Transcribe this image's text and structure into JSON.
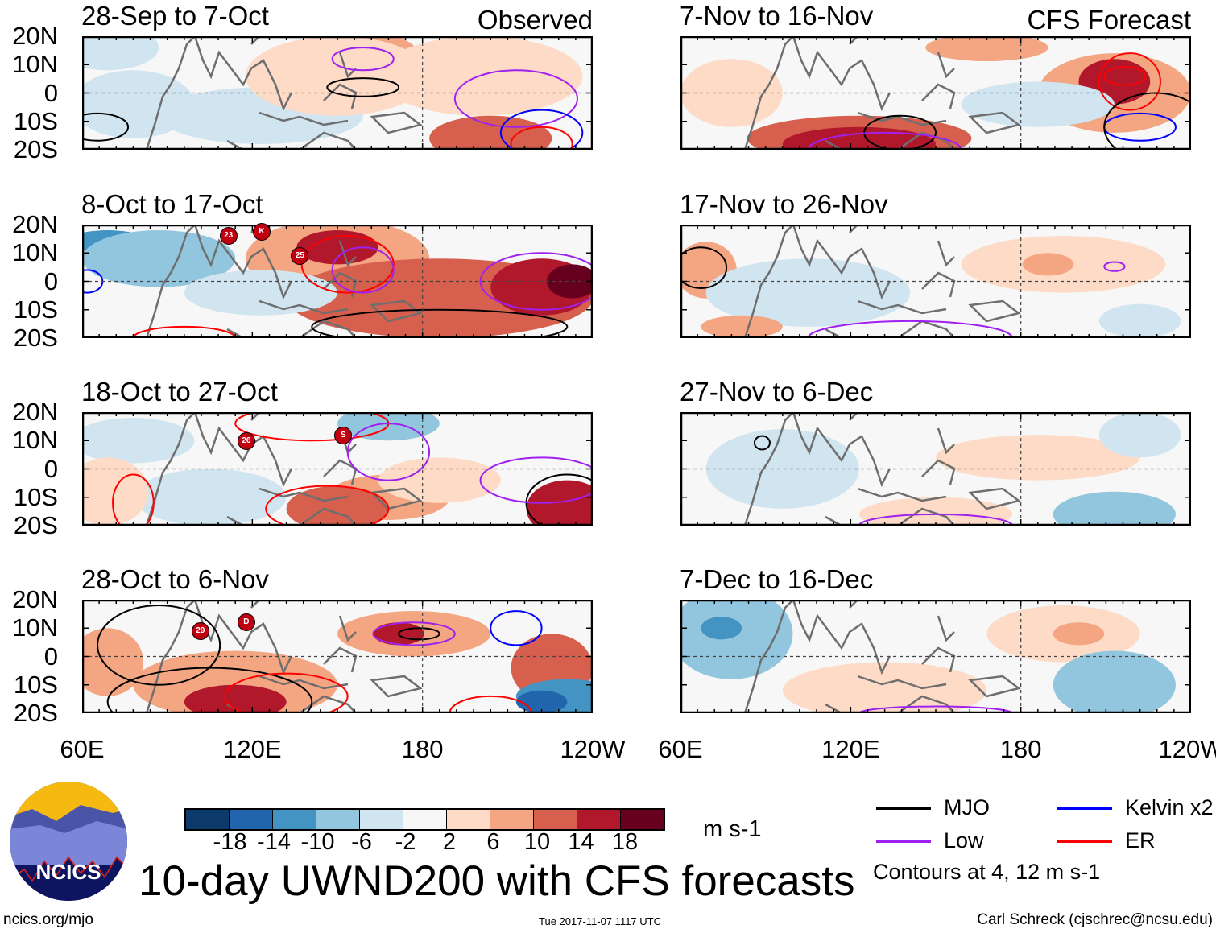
{
  "panels": [
    {
      "title": "28-Sep to 7-Oct",
      "label": "Observed",
      "storms": []
    },
    {
      "title": "8-Oct to 17-Oct",
      "storms": [
        "23",
        "K",
        "25"
      ]
    },
    {
      "title": "18-Oct to 27-Oct",
      "storms": [
        "26",
        "S"
      ]
    },
    {
      "title": "28-Oct to 6-Nov",
      "storms": [
        "29",
        "D"
      ]
    },
    {
      "title": "7-Nov to 16-Nov",
      "label": "CFS Forecast",
      "storms": []
    },
    {
      "title": "17-Nov to 26-Nov",
      "storms": []
    },
    {
      "title": "27-Nov to 6-Dec",
      "storms": []
    },
    {
      "title": "7-Dec to 16-Dec",
      "storms": []
    }
  ],
  "lat_labels": [
    "20N",
    "10N",
    "0",
    "10S",
    "20S"
  ],
  "lon_labels": [
    "60E",
    "120E",
    "180",
    "120W"
  ],
  "colorbar": {
    "colors": [
      "#0b3a6b",
      "#2166ac",
      "#4393c3",
      "#92c5de",
      "#d1e5f0",
      "#f7f7f7",
      "#fddbc7",
      "#f4a582",
      "#d6604d",
      "#b2182b",
      "#67001f"
    ],
    "levels": [
      "-18",
      "-14",
      "-10",
      "-6",
      "-2",
      "2",
      "6",
      "10",
      "14",
      "18"
    ],
    "units": "m s-1"
  },
  "title": "10-day UWND200 with CFS forecasts",
  "legend": {
    "items": [
      {
        "label": "MJO",
        "color": "#000000"
      },
      {
        "label": "Kelvin x2",
        "color": "#0000ff"
      },
      {
        "label": "Low",
        "color": "#a020f0"
      },
      {
        "label": "ER",
        "color": "#ff0000"
      }
    ],
    "note": "Contours at 4, 12 m s-1"
  },
  "logo_text": "NCICS",
  "footer": {
    "left": "ncics.org/mjo",
    "center": "Tue 2017-11-07 1117 UTC",
    "right": "Carl Schreck (cjschrec@ncsu.edu)"
  }
}
